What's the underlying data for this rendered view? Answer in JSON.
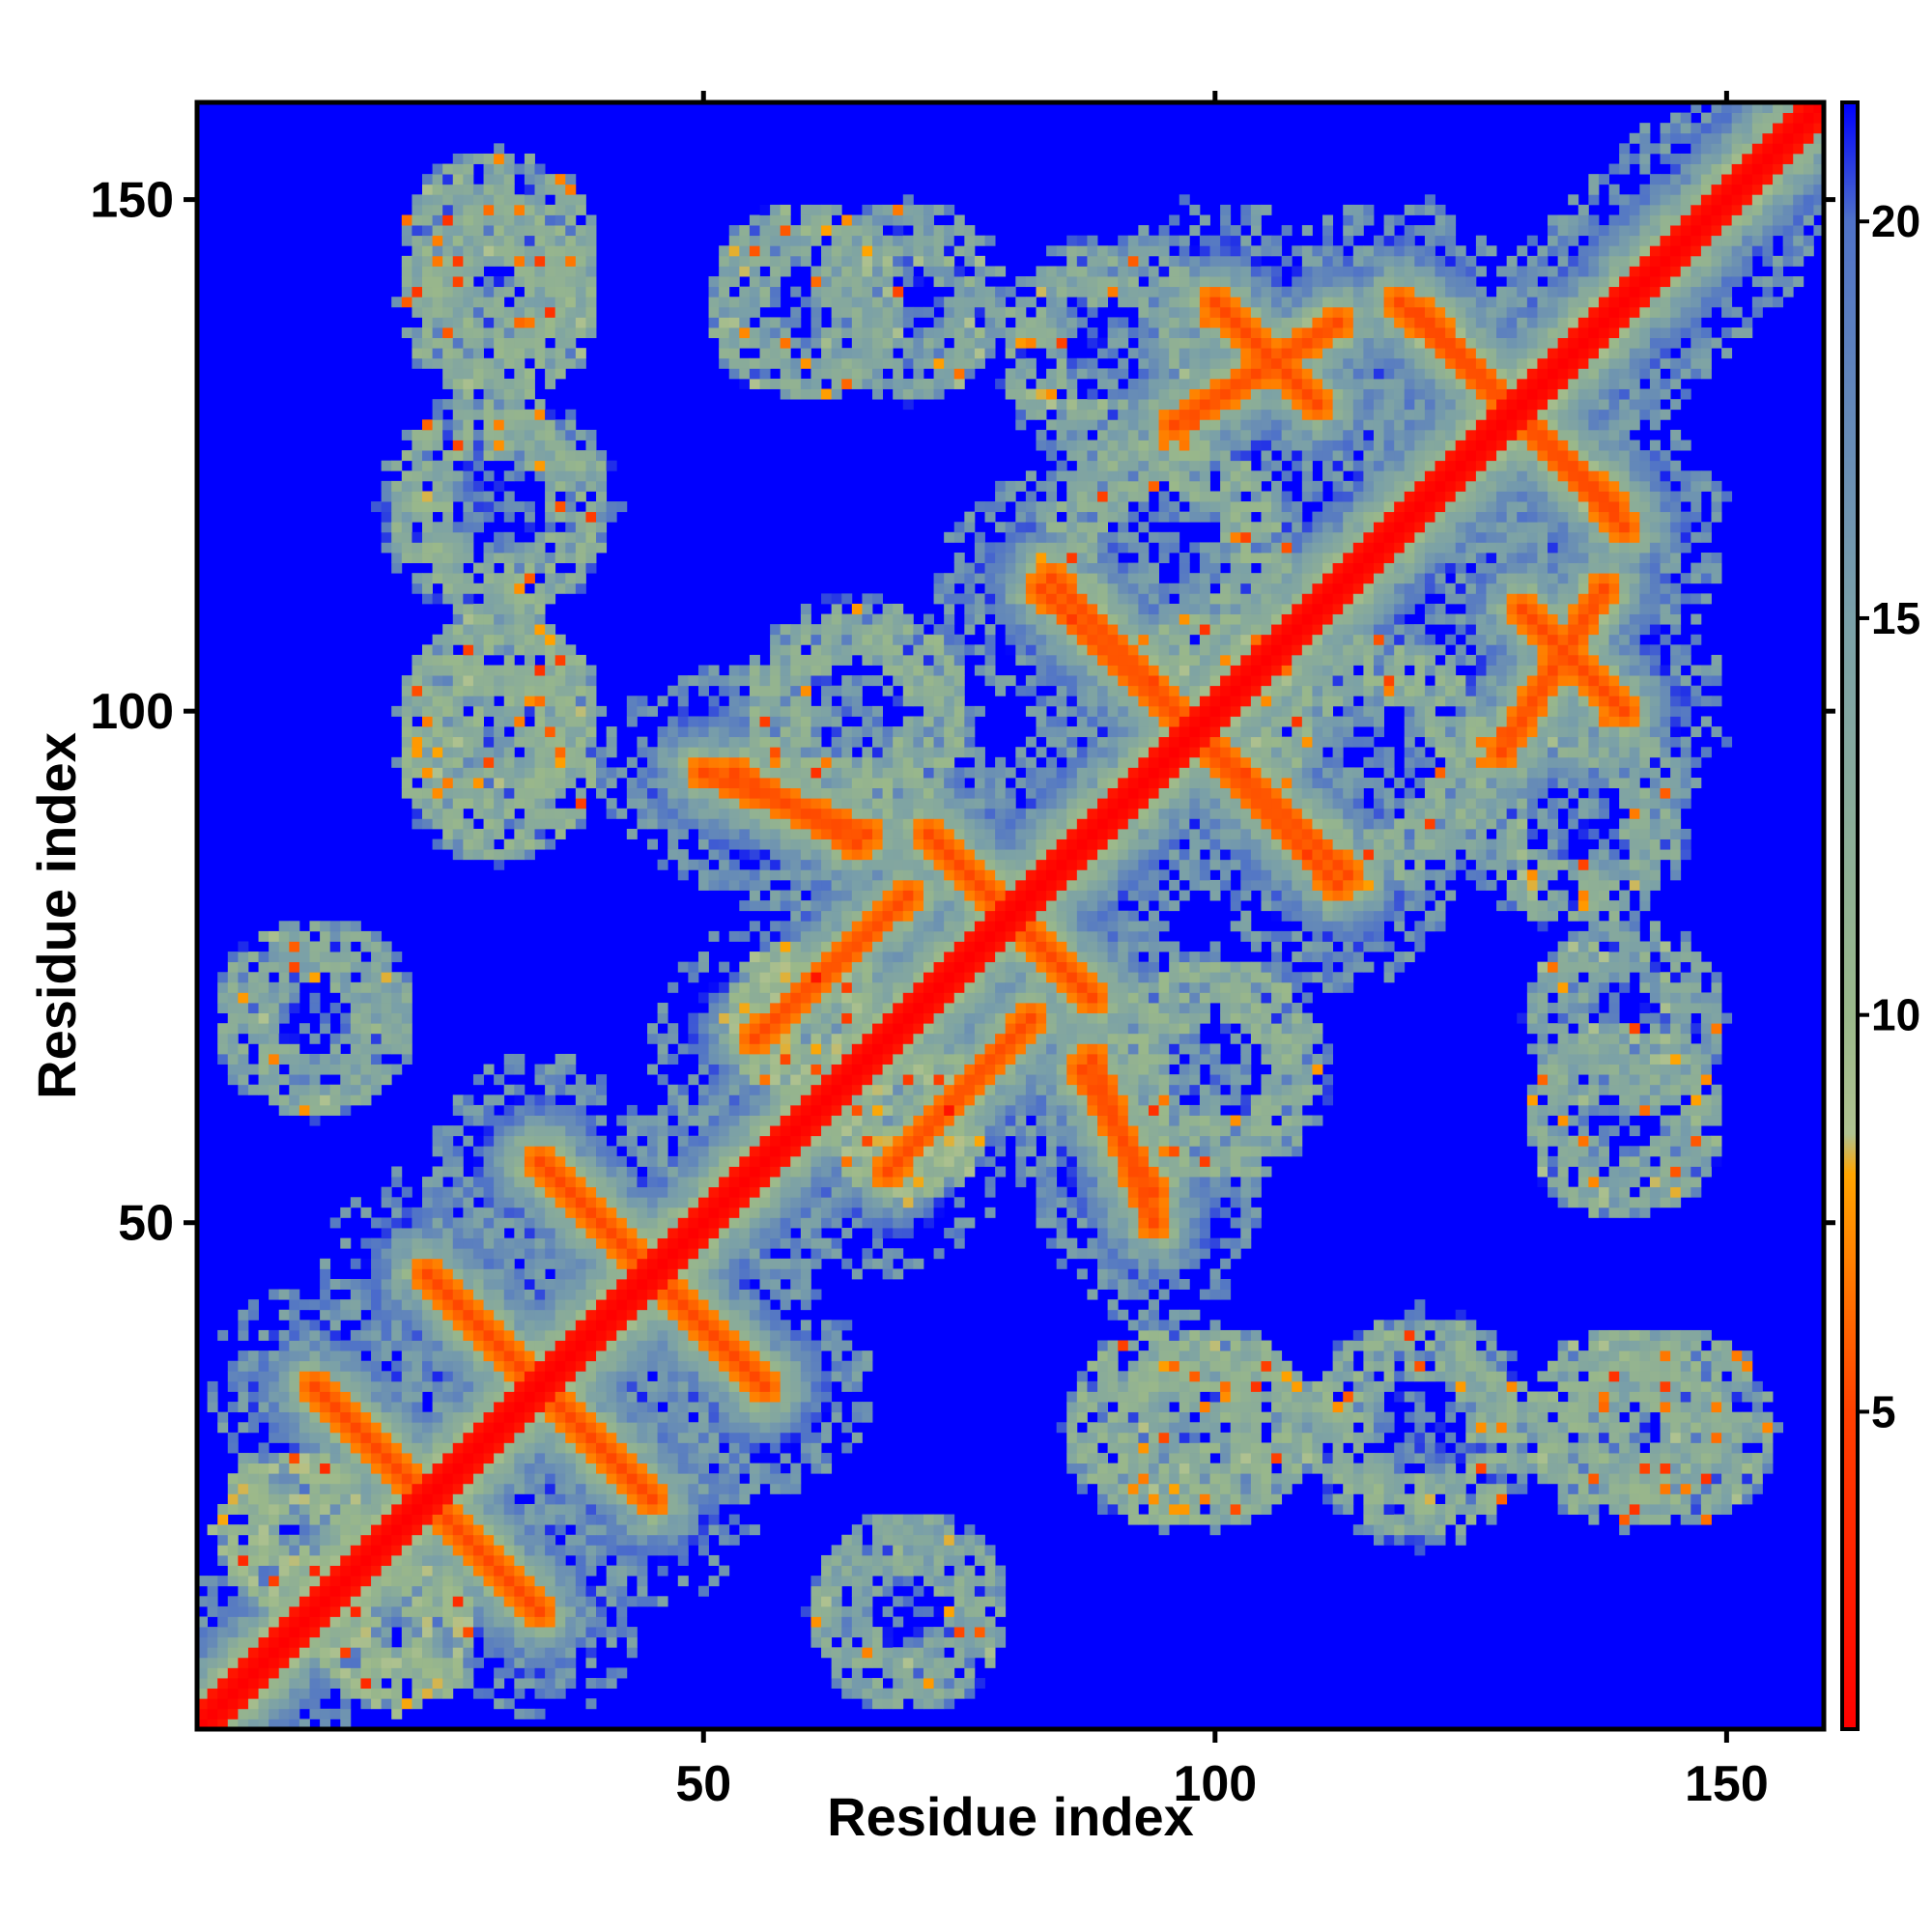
{
  "chart_data": {
    "type": "heatmap",
    "title": "",
    "xlabel": "Residue index",
    "ylabel": "Residue index",
    "n_residues": 159,
    "xlim": [
      1,
      159
    ],
    "ylim": [
      1,
      159
    ],
    "x_ticks": [
      50,
      100,
      150
    ],
    "y_ticks": [
      50,
      100,
      150
    ],
    "colorbar": {
      "ticks": [
        5,
        10,
        15,
        20
      ],
      "range": [
        1,
        21.5
      ],
      "stops": [
        {
          "value": 1,
          "color": "#ff0000"
        },
        {
          "value": 5,
          "color": "#ff4000"
        },
        {
          "value": 8,
          "color": "#ffa500"
        },
        {
          "value": 8.5,
          "color": "#b0c290"
        },
        {
          "value": 10,
          "color": "#9ab88a"
        },
        {
          "value": 15,
          "color": "#7aa0a8"
        },
        {
          "value": 20,
          "color": "#4f72c8"
        },
        {
          "value": 21.5,
          "color": "#0000ff"
        }
      ]
    },
    "value_scale": "distance",
    "background_value": 21.5,
    "diagonal_value": 1,
    "contact_bands": [
      {
        "from": [
          1,
          1
        ],
        "to": [
          159,
          159
        ],
        "value": 3,
        "width": 2
      },
      {
        "from": [
          34,
          56
        ],
        "to": [
          56,
          34
        ],
        "value": 7,
        "width": 1.5
      },
      {
        "from": [
          26,
          42
        ],
        "to": [
          45,
          23
        ],
        "value": 7,
        "width": 1.5
      },
      {
        "from": [
          14,
          32
        ],
        "to": [
          34,
          12
        ],
        "value": 7,
        "width": 1.5
      },
      {
        "from": [
          50,
          94
        ],
        "to": [
          66,
          88
        ],
        "value": 7,
        "width": 1.5
      },
      {
        "from": [
          72,
          88
        ],
        "to": [
          88,
          72
        ],
        "value": 7,
        "width": 1.5
      },
      {
        "from": [
          83,
          112
        ],
        "to": [
          113,
          84
        ],
        "value": 7,
        "width": 1.5
      },
      {
        "from": [
          87,
          65
        ],
        "to": [
          94,
          53
        ],
        "value": 7,
        "width": 1.5
      },
      {
        "from": [
          96,
          128
        ],
        "to": [
          112,
          138
        ],
        "value": 7,
        "width": 1.5
      },
      {
        "from": [
          118,
          140
        ],
        "to": [
          139,
          120
        ],
        "value": 7,
        "width": 1.5
      },
      {
        "from": [
          130,
          110
        ],
        "to": [
          140,
          100
        ],
        "value": 7,
        "width": 1.5
      },
      {
        "from": [
          55,
          68
        ],
        "to": [
          70,
          82
        ],
        "value": 7,
        "width": 1.5
      }
    ],
    "contact_blobs": [
      {
        "center": [
          30,
          140
        ],
        "radius": 10,
        "value": 12
      },
      {
        "center": [
          30,
          95
        ],
        "radius": 10,
        "value": 12
      },
      {
        "center": [
          12,
          70
        ],
        "radius": 10,
        "value": 13
      },
      {
        "center": [
          60,
          140
        ],
        "radius": 10,
        "value": 13
      },
      {
        "center": [
          100,
          30
        ],
        "radius": 10,
        "value": 12
      },
      {
        "center": [
          120,
          30
        ],
        "radius": 12,
        "value": 12
      },
      {
        "center": [
          145,
          30
        ],
        "radius": 10,
        "value": 13
      },
      {
        "center": [
          140,
          70
        ],
        "radius": 10,
        "value": 14
      },
      {
        "center": [
          100,
          65
        ],
        "radius": 12,
        "value": 12
      },
      {
        "center": [
          115,
          95
        ],
        "radius": 14,
        "value": 12
      },
      {
        "center": [
          135,
          90
        ],
        "radius": 12,
        "value": 13
      },
      {
        "center": [
          20,
          10
        ],
        "radius": 8,
        "value": 10
      },
      {
        "center": [
          70,
          60
        ],
        "radius": 8,
        "value": 10
      }
    ]
  }
}
